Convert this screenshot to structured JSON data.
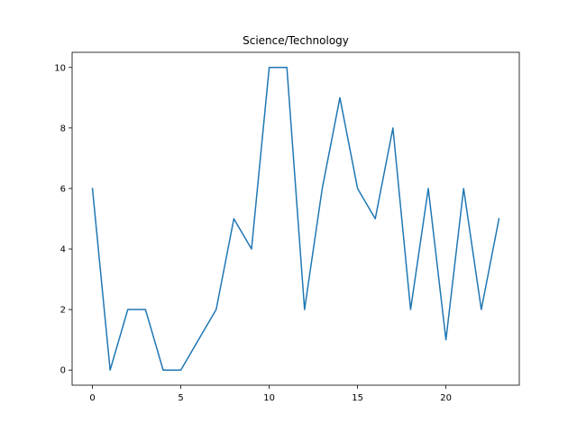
{
  "chart_data": {
    "type": "line",
    "title": "Science/Technology",
    "xlabel": "",
    "ylabel": "",
    "x": [
      0,
      1,
      2,
      3,
      4,
      5,
      6,
      7,
      8,
      9,
      10,
      11,
      12,
      13,
      14,
      15,
      16,
      17,
      18,
      19,
      20,
      21,
      22,
      23
    ],
    "series": [
      {
        "values": [
          6,
          0,
          2,
          2,
          0,
          0,
          1,
          2,
          5,
          4,
          10,
          10,
          2,
          6,
          9,
          6,
          5,
          8,
          2,
          6,
          1,
          6,
          2,
          5
        ],
        "color": "#1f77b4"
      }
    ],
    "xlim": [
      -1.15,
      24.15
    ],
    "ylim": [
      -0.5,
      10.5
    ],
    "xticks": [
      0,
      5,
      10,
      15,
      20
    ],
    "yticks": [
      0,
      2,
      4,
      6,
      8,
      10
    ],
    "xtick_labels": [
      "0",
      "5",
      "10",
      "15",
      "20"
    ],
    "ytick_labels": [
      "0",
      "2",
      "4",
      "6",
      "8",
      "10"
    ],
    "grid": false,
    "legend": "none"
  }
}
